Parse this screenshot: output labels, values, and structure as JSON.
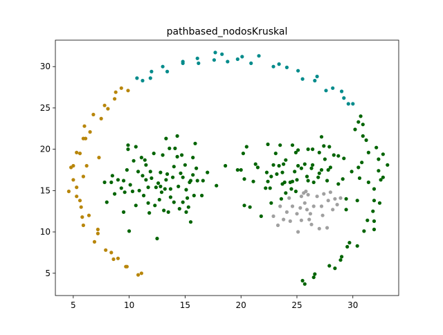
{
  "chart_data": {
    "type": "scatter",
    "title": "pathbased_nodosKruskal",
    "xlabel": "",
    "ylabel": "",
    "xlim": [
      3.4,
      34.1
    ],
    "ylim": [
      2.3,
      33.2
    ],
    "x_ticks": [
      5,
      10,
      15,
      20,
      25,
      30
    ],
    "y_ticks": [
      5,
      10,
      15,
      20,
      25,
      30
    ],
    "x_tick_labels": [
      "5",
      "10",
      "15",
      "20",
      "25",
      "30"
    ],
    "y_tick_labels": [
      "5",
      "10",
      "15",
      "20",
      "25",
      "30"
    ],
    "grid": false,
    "legend": false,
    "series": [
      {
        "color": "#b8860b",
        "points": [
          [
            4.6,
            14.9
          ],
          [
            4.8,
            17.8
          ],
          [
            5.0,
            18.0
          ],
          [
            5.0,
            16.3
          ],
          [
            5.3,
            15.4
          ],
          [
            5.3,
            14.3
          ],
          [
            5.3,
            19.6
          ],
          [
            5.6,
            13.8
          ],
          [
            5.6,
            19.5
          ],
          [
            5.7,
            13.0
          ],
          [
            5.8,
            11.8
          ],
          [
            5.9,
            10.8
          ],
          [
            5.9,
            16.7
          ],
          [
            5.9,
            21.3
          ],
          [
            6.0,
            22.8
          ],
          [
            6.1,
            21.3
          ],
          [
            6.2,
            18.0
          ],
          [
            6.4,
            12.0
          ],
          [
            6.5,
            22.1
          ],
          [
            6.8,
            24.2
          ],
          [
            6.9,
            8.8
          ],
          [
            7.2,
            10.3
          ],
          [
            7.2,
            9.8
          ],
          [
            7.3,
            19.0
          ],
          [
            7.5,
            23.7
          ],
          [
            7.8,
            25.3
          ],
          [
            7.9,
            7.8
          ],
          [
            8.1,
            24.9
          ],
          [
            8.4,
            7.5
          ],
          [
            8.6,
            6.7
          ],
          [
            8.7,
            26.1
          ],
          [
            8.8,
            26.9
          ],
          [
            9.0,
            6.8
          ],
          [
            9.3,
            27.4
          ],
          [
            9.7,
            5.8
          ],
          [
            9.8,
            5.8
          ],
          [
            9.9,
            27.1
          ],
          [
            10.8,
            4.8
          ],
          [
            11.1,
            5.0
          ]
        ]
      },
      {
        "color": "#008b8b",
        "points": [
          [
            10.7,
            28.6
          ],
          [
            11.2,
            28.3
          ],
          [
            11.9,
            28.6
          ],
          [
            12.0,
            29.4
          ],
          [
            13.0,
            30.0
          ],
          [
            13.4,
            29.4
          ],
          [
            14.8,
            30.4
          ],
          [
            14.8,
            30.6
          ],
          [
            16.1,
            31.0
          ],
          [
            16.2,
            30.4
          ],
          [
            17.6,
            30.8
          ],
          [
            17.7,
            31.7
          ],
          [
            18.3,
            31.5
          ],
          [
            18.8,
            30.6
          ],
          [
            19.7,
            30.9
          ],
          [
            20.1,
            31.2
          ],
          [
            20.9,
            30.4
          ],
          [
            21.6,
            31.3
          ],
          [
            22.9,
            30.0
          ],
          [
            23.4,
            30.3
          ],
          [
            24.1,
            29.9
          ],
          [
            25.1,
            29.5
          ],
          [
            25.5,
            28.5
          ],
          [
            26.6,
            28.3
          ],
          [
            26.8,
            28.8
          ],
          [
            27.6,
            27.1
          ],
          [
            28.2,
            27.4
          ],
          [
            29.0,
            27.0
          ],
          [
            29.2,
            26.2
          ],
          [
            29.6,
            25.5
          ],
          [
            30.0,
            25.5
          ]
        ]
      },
      {
        "color": "#006400",
        "points": [
          [
            7.8,
            16.0
          ],
          [
            8.0,
            13.6
          ],
          [
            8.4,
            16.0
          ],
          [
            8.5,
            16.8
          ],
          [
            8.7,
            14.6
          ],
          [
            9.0,
            16.3
          ],
          [
            9.3,
            15.3
          ],
          [
            9.5,
            12.4
          ],
          [
            9.5,
            16.2
          ],
          [
            9.6,
            14.8
          ],
          [
            9.8,
            17.5
          ],
          [
            9.9,
            20.5
          ],
          [
            9.9,
            20.0
          ],
          [
            10.0,
            10.1
          ],
          [
            10.1,
            15.7
          ],
          [
            10.3,
            14.9
          ],
          [
            10.4,
            18.6
          ],
          [
            10.6,
            13.2
          ],
          [
            10.6,
            20.3
          ],
          [
            10.8,
            17.3
          ],
          [
            10.9,
            15.0
          ],
          [
            11.1,
            19.0
          ],
          [
            11.2,
            16.8
          ],
          [
            11.3,
            14.4
          ],
          [
            11.4,
            18.7
          ],
          [
            11.5,
            16.3
          ],
          [
            11.5,
            18.1
          ],
          [
            11.7,
            13.5
          ],
          [
            11.7,
            15.4
          ],
          [
            11.8,
            12.3
          ],
          [
            11.9,
            17.3
          ],
          [
            12.0,
            16.5
          ],
          [
            12.2,
            19.5
          ],
          [
            12.3,
            13.2
          ],
          [
            12.4,
            15.4
          ],
          [
            12.5,
            9.2
          ],
          [
            12.6,
            15.9
          ],
          [
            12.7,
            13.9
          ],
          [
            12.8,
            15.5
          ],
          [
            12.8,
            17.2
          ],
          [
            12.9,
            14.8
          ],
          [
            13.0,
            19.3
          ],
          [
            13.1,
            12.6
          ],
          [
            13.2,
            15.2
          ],
          [
            13.3,
            16.3
          ],
          [
            13.3,
            21.3
          ],
          [
            13.4,
            17.0
          ],
          [
            13.5,
            12.4
          ],
          [
            13.6,
            20.1
          ],
          [
            13.7,
            14.2
          ],
          [
            13.7,
            15.2
          ],
          [
            13.9,
            16.6
          ],
          [
            14.0,
            13.6
          ],
          [
            14.0,
            17.9
          ],
          [
            14.1,
            20.1
          ],
          [
            14.3,
            19.1
          ],
          [
            14.3,
            21.6
          ],
          [
            14.4,
            15.5
          ],
          [
            14.5,
            12.8
          ],
          [
            14.6,
            17.1
          ],
          [
            14.7,
            19.3
          ],
          [
            14.8,
            16.6
          ],
          [
            14.8,
            13.6
          ],
          [
            15.0,
            18.1
          ],
          [
            15.1,
            15.1
          ],
          [
            15.1,
            12.4
          ],
          [
            15.2,
            14.1
          ],
          [
            15.3,
            13.0
          ],
          [
            15.4,
            16.0
          ],
          [
            15.5,
            16.2
          ],
          [
            15.5,
            11.2
          ],
          [
            15.7,
            16.9
          ],
          [
            15.7,
            19.0
          ],
          [
            15.8,
            14.4
          ],
          [
            15.9,
            20.7
          ],
          [
            16.0,
            17.7
          ],
          [
            16.1,
            16.2
          ],
          [
            16.5,
            14.4
          ],
          [
            16.6,
            16.2
          ],
          [
            17.0,
            17.2
          ],
          [
            17.8,
            15.6
          ],
          [
            18.6,
            18.0
          ],
          [
            19.7,
            17.5
          ],
          [
            20.0,
            17.5
          ],
          [
            20.2,
            19.5
          ],
          [
            20.3,
            13.2
          ],
          [
            20.3,
            16.4
          ],
          [
            20.5,
            20.3
          ],
          [
            20.8,
            13.0
          ],
          [
            21.1,
            16.1
          ],
          [
            21.3,
            18.2
          ],
          [
            21.5,
            17.8
          ],
          [
            21.8,
            11.9
          ],
          [
            22.2,
            15.3
          ],
          [
            22.3,
            17.2
          ],
          [
            22.4,
            16.1
          ],
          [
            22.4,
            20.6
          ],
          [
            22.6,
            15.3
          ],
          [
            22.7,
            13.5
          ],
          [
            22.7,
            16.7
          ],
          [
            22.9,
            18.1
          ],
          [
            23.1,
            19.5
          ],
          [
            23.2,
            17.0
          ],
          [
            23.4,
            18.0
          ],
          [
            23.5,
            20.5
          ],
          [
            23.6,
            14.0
          ],
          [
            23.7,
            15.8
          ],
          [
            23.7,
            17.2
          ],
          [
            23.8,
            18.2
          ],
          [
            23.9,
            16.0
          ],
          [
            24.0,
            14.7
          ],
          [
            24.0,
            18.7
          ],
          [
            24.4,
            16.0
          ],
          [
            24.5,
            15.2
          ],
          [
            24.6,
            20.5
          ],
          [
            24.6,
            16.1
          ],
          [
            24.8,
            17.3
          ],
          [
            24.9,
            19.6
          ],
          [
            24.9,
            14.9
          ],
          [
            25.0,
            16.3
          ],
          [
            25.1,
            18.0
          ],
          [
            25.1,
            19.9
          ],
          [
            25.4,
            17.7
          ],
          [
            25.5,
            4.1
          ],
          [
            25.7,
            18.2
          ],
          [
            25.7,
            3.7
          ],
          [
            25.9,
            16.7
          ],
          [
            26.0,
            20.0
          ],
          [
            26.0,
            16.2
          ],
          [
            26.3,
            17.7
          ],
          [
            26.4,
            18.1
          ],
          [
            26.4,
            20.0
          ],
          [
            26.5,
            16.0
          ],
          [
            26.5,
            4.5
          ],
          [
            26.6,
            4.9
          ],
          [
            26.9,
            16.6
          ],
          [
            27.0,
            19.6
          ],
          [
            27.0,
            17.1
          ],
          [
            27.2,
            21.5
          ],
          [
            27.2,
            17.5
          ],
          [
            27.4,
            20.4
          ],
          [
            27.5,
            18.8
          ],
          [
            27.7,
            16.2
          ],
          [
            27.8,
            17.5
          ],
          [
            27.9,
            5.9
          ],
          [
            27.9,
            20.3
          ],
          [
            28.0,
            17.8
          ],
          [
            28.3,
            19.3
          ],
          [
            28.4,
            5.6
          ],
          [
            28.7,
            19.2
          ],
          [
            28.7,
            15.8
          ],
          [
            28.9,
            6.6
          ],
          [
            29.0,
            7.0
          ],
          [
            29.1,
            16.4
          ],
          [
            29.2,
            18.9
          ],
          [
            29.4,
            14.0
          ],
          [
            29.4,
            12.7
          ],
          [
            29.5,
            8.2
          ],
          [
            29.7,
            8.7
          ],
          [
            29.9,
            17.3
          ],
          [
            30.2,
            22.4
          ],
          [
            30.4,
            8.3
          ],
          [
            30.4,
            13.8
          ],
          [
            30.5,
            17.8
          ],
          [
            30.5,
            23.3
          ],
          [
            30.6,
            16.5
          ],
          [
            30.7,
            24.0
          ],
          [
            30.8,
            18.4
          ],
          [
            30.9,
            21.6
          ],
          [
            30.9,
            23.0
          ],
          [
            31.0,
            10.1
          ],
          [
            31.2,
            21.1
          ],
          [
            31.3,
            11.4
          ],
          [
            31.4,
            19.6
          ],
          [
            31.4,
            16.0
          ],
          [
            31.8,
            12.5
          ],
          [
            31.9,
            15.2
          ],
          [
            31.9,
            13.8
          ],
          [
            31.9,
            11.3
          ],
          [
            31.9,
            10.3
          ],
          [
            32.1,
            20.2
          ],
          [
            32.3,
            18.8
          ],
          [
            32.3,
            17.4
          ],
          [
            32.4,
            13.5
          ],
          [
            32.5,
            16.3
          ],
          [
            32.7,
            16.6
          ],
          [
            33.1,
            18.1
          ],
          [
            32.7,
            19.4
          ]
        ]
      },
      {
        "color": "#a0a0a0",
        "points": [
          [
            22.9,
            11.9
          ],
          [
            23.3,
            10.8
          ],
          [
            23.5,
            13.1
          ],
          [
            23.8,
            11.5
          ],
          [
            24.1,
            12.4
          ],
          [
            24.4,
            11.3
          ],
          [
            24.6,
            13.1
          ],
          [
            25.0,
            12.2
          ],
          [
            25.1,
            10.0
          ],
          [
            25.3,
            12.9
          ],
          [
            25.4,
            11.4
          ],
          [
            25.4,
            14.3
          ],
          [
            25.6,
            14.7
          ],
          [
            25.7,
            13.5
          ],
          [
            25.8,
            14.9
          ],
          [
            25.9,
            12.7
          ],
          [
            26.0,
            14.5
          ],
          [
            26.1,
            11.5
          ],
          [
            26.2,
            12.2
          ],
          [
            26.3,
            10.9
          ],
          [
            26.5,
            13.1
          ],
          [
            26.8,
            14.3
          ],
          [
            27.0,
            10.4
          ],
          [
            27.2,
            13.1
          ],
          [
            27.3,
            12.0
          ],
          [
            27.4,
            14.6
          ],
          [
            27.7,
            10.5
          ],
          [
            27.8,
            13.8
          ],
          [
            28.0,
            14.8
          ],
          [
            28.2,
            12.7
          ],
          [
            28.4,
            14.0
          ],
          [
            28.6,
            13.3
          ],
          [
            28.9,
            14.1
          ],
          [
            24.3,
            14.1
          ]
        ]
      }
    ]
  }
}
